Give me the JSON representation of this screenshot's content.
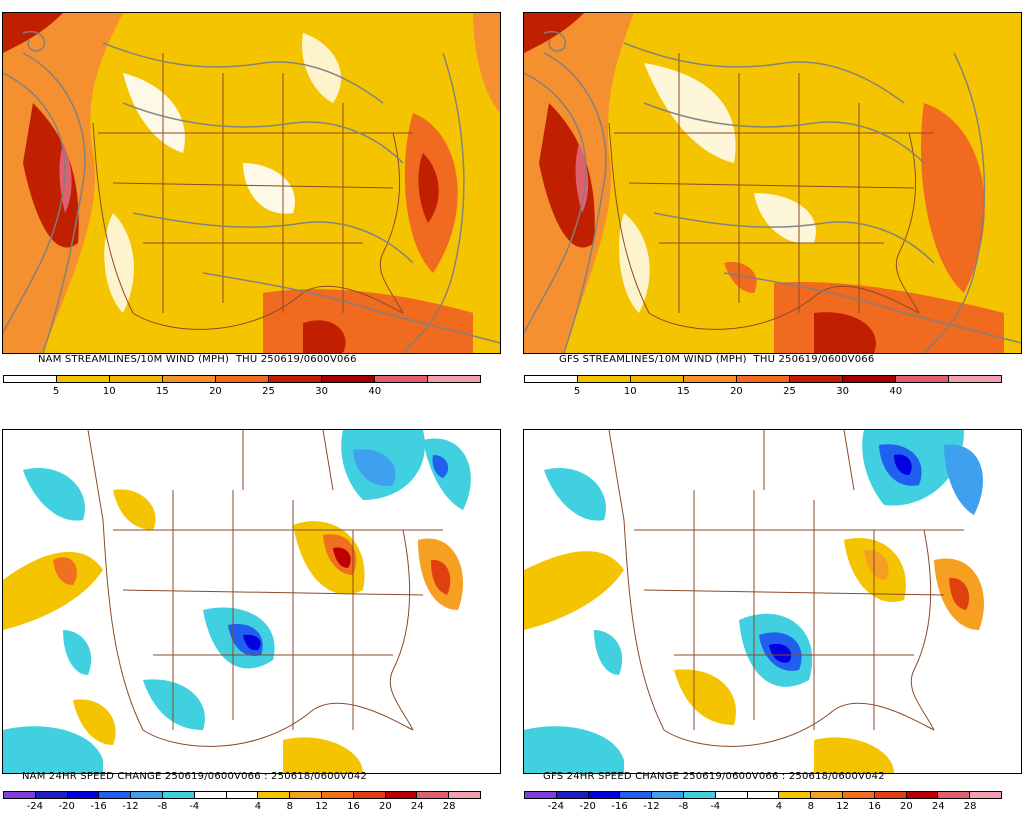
{
  "panels": [
    {
      "id": "nam-wind",
      "title": "NAM STREAMLINES/10M WIND (MPH)  THU 250619/0600V066",
      "colorbar_colors": [
        "#ffffff",
        "#f5c400",
        "#f5b400",
        "#f59030",
        "#f06a20",
        "#c02000",
        "#a00000",
        "#e06070",
        "#f0a0b0"
      ],
      "colorbar_ticks": [
        "5",
        "10",
        "15",
        "20",
        "25",
        "30",
        "40"
      ],
      "type": "wind"
    },
    {
      "id": "gfs-wind",
      "title": "GFS STREAMLINES/10M WIND (MPH)  THU 250619/0600V066",
      "colorbar_colors": [
        "#ffffff",
        "#f5c400",
        "#f5b400",
        "#f59030",
        "#f06a20",
        "#c02000",
        "#a00000",
        "#e06070",
        "#f0a0b0"
      ],
      "colorbar_ticks": [
        "5",
        "10",
        "15",
        "20",
        "25",
        "30",
        "40"
      ],
      "type": "wind"
    },
    {
      "id": "nam-change",
      "title": "NAM 24HR SPEED CHANGE 250619/0600V066 : 250618/0600V042",
      "colorbar_colors": [
        "#8040e0",
        "#2020c0",
        "#0000e0",
        "#2060f0",
        "#40a0f0",
        "#40d0e0",
        "#ffffff",
        "#ffffff",
        "#f5c400",
        "#f5a020",
        "#f07020",
        "#e04010",
        "#c00000",
        "#e06070",
        "#f0a0b0"
      ],
      "colorbar_ticks": [
        "-24",
        "-20",
        "-16",
        "-12",
        "-8",
        "-4",
        "4",
        "8",
        "12",
        "16",
        "20",
        "24",
        "28"
      ],
      "type": "change"
    },
    {
      "id": "gfs-change",
      "title": "GFS 24HR SPEED CHANGE 250619/0600V066 : 250618/0600V042",
      "colorbar_colors": [
        "#8040e0",
        "#2020c0",
        "#0000e0",
        "#2060f0",
        "#40a0f0",
        "#40d0e0",
        "#ffffff",
        "#ffffff",
        "#f5c400",
        "#f5a020",
        "#f07020",
        "#e04010",
        "#c00000",
        "#e06070",
        "#f0a0b0"
      ],
      "colorbar_ticks": [
        "-24",
        "-20",
        "-16",
        "-12",
        "-8",
        "-4",
        "4",
        "8",
        "12",
        "16",
        "20",
        "24",
        "28"
      ],
      "type": "change"
    }
  ]
}
